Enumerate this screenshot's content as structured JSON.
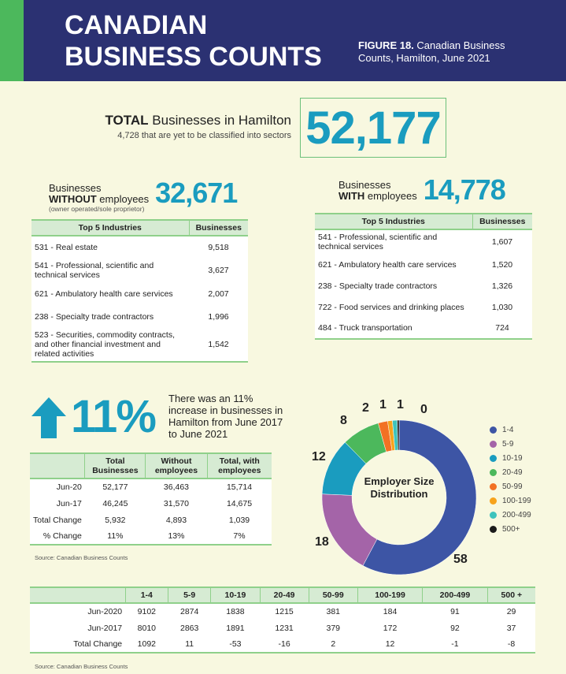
{
  "header": {
    "title_line1": "CANADIAN",
    "title_line2": "BUSINESS COUNTS",
    "figure_label": "FIGURE 18.",
    "figure_caption": "Canadian Business Counts, Hamilton, June 2021"
  },
  "total": {
    "label_bold": "TOTAL",
    "label_rest": "Businesses in Hamilton",
    "subtitle": "4,728 that are yet to be classified into sectors",
    "value": "52,177"
  },
  "without": {
    "line1": "Businesses",
    "line2_bold": "WITHOUT",
    "line2_rest": "employees",
    "note": "(owner operated/sole proprietor)",
    "value": "32,671",
    "headers": [
      "Top 5 Industries",
      "Businesses"
    ],
    "rows": [
      [
        "531 - Real estate",
        "9,518"
      ],
      [
        "541 - Professional, scientific and technical services",
        "3,627"
      ],
      [
        "621 - Ambulatory health care services",
        "2,007"
      ],
      [
        "238 - Specialty trade contractors",
        "1,996"
      ],
      [
        "523 - Securities, commodity contracts, and other financial investment and related activities",
        "1,542"
      ]
    ]
  },
  "with": {
    "line1": "Businesses",
    "line2_bold": "WITH",
    "line2_rest": "employees",
    "value": "14,778",
    "headers": [
      "Top 5 Industries",
      "Businesses"
    ],
    "rows": [
      [
        "541 - Professional, scientific and technical services",
        "1,607"
      ],
      [
        "621 - Ambulatory health care services",
        "1,520"
      ],
      [
        "238 - Specialty trade contractors",
        "1,326"
      ],
      [
        "722 - Food services and drinking places",
        "1,030"
      ],
      [
        "484 - Truck transportation",
        "724"
      ]
    ]
  },
  "growth": {
    "value": "11%",
    "text": "There was an 11% increase in businesses in Hamilton from June 2017 to June 2021"
  },
  "change_table": {
    "headers": [
      "",
      "Total Businesses",
      "Without employees",
      "Total, with employees"
    ],
    "rows": [
      [
        "Jun-20",
        "52,177",
        "36,463",
        "15,714"
      ],
      [
        "Jun-17",
        "46,245",
        "31,570",
        "14,675"
      ],
      [
        "Total Change",
        "5,932",
        "4,893",
        "1,039"
      ],
      [
        "% Change",
        "11%",
        "13%",
        "7%"
      ]
    ],
    "source": "Source: Canadian Business Counts"
  },
  "chart_data": {
    "type": "pie",
    "title": "Employer Size Distribution",
    "categories": [
      "1-4",
      "5-9",
      "10-19",
      "20-49",
      "50-99",
      "100-199",
      "200-499",
      "500+"
    ],
    "values": [
      58,
      18,
      12,
      8,
      2,
      1,
      1,
      0
    ],
    "colors": [
      "#3d55a5",
      "#a464a8",
      "#1a9cbf",
      "#4cb85c",
      "#f27124",
      "#f7a31c",
      "#3ec3bc",
      "#1a1a1a"
    ],
    "legend_position": "right"
  },
  "size_table": {
    "headers": [
      "",
      "1-4",
      "5-9",
      "10-19",
      "20-49",
      "50-99",
      "100-199",
      "200-499",
      "500 +"
    ],
    "rows": [
      [
        "Jun-2020",
        "9102",
        "2874",
        "1838",
        "1215",
        "381",
        "184",
        "91",
        "29"
      ],
      [
        "Jun-2017",
        "8010",
        "2863",
        "1891",
        "1231",
        "379",
        "172",
        "92",
        "37"
      ],
      [
        "Total Change",
        "1092",
        "11",
        "-53",
        "-16",
        "2",
        "12",
        "-1",
        "-8"
      ]
    ],
    "source": "Source: Canadian Business Counts"
  }
}
